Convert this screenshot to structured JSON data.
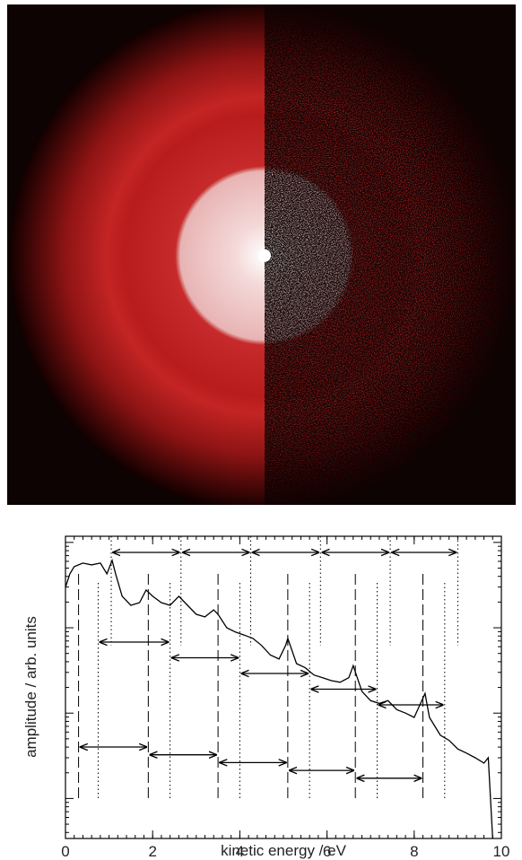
{
  "chart_data": {
    "type": "line",
    "x_label": "kinetic energy / eV",
    "y_label": "amplitude / arb. units",
    "x": [
      0,
      0.1,
      0.2,
      0.4,
      0.6,
      0.8,
      0.95,
      1.07,
      1.15,
      1.3,
      1.5,
      1.7,
      1.85,
      2.0,
      2.2,
      2.4,
      2.6,
      2.8,
      3.0,
      3.2,
      3.4,
      3.5,
      3.7,
      3.9,
      4.1,
      4.3,
      4.5,
      4.7,
      4.9,
      5.05,
      5.1,
      5.3,
      5.5,
      5.7,
      5.9,
      6.1,
      6.3,
      6.5,
      6.6,
      6.8,
      7.0,
      7.2,
      7.4,
      7.6,
      7.8,
      8.0,
      8.25,
      8.35,
      8.6,
      8.8,
      9.0,
      9.2,
      9.4,
      9.6,
      9.7,
      9.8
    ],
    "values": [
      29.8,
      42.8,
      52,
      57.3,
      54.6,
      57.3,
      42.8,
      61.5,
      42.8,
      23.4,
      18.3,
      19.7,
      27.7,
      23.4,
      19.7,
      18.3,
      23.4,
      18.3,
      14.4,
      13.4,
      16.2,
      14.4,
      10,
      8.9,
      8.2,
      7.5,
      6.2,
      4.8,
      4.3,
      6.2,
      7.5,
      3.8,
      3.4,
      2.8,
      2.6,
      2.4,
      2.3,
      2.6,
      3.6,
      1.8,
      1.4,
      1.3,
      1.4,
      1.1,
      1.0,
      0.89,
      1.7,
      0.89,
      0.55,
      0.48,
      0.38,
      0.34,
      0.3,
      0.26,
      0.3,
      0.034
    ],
    "color": "#000000",
    "xlim": [
      0,
      10
    ],
    "xticks": [
      0,
      2,
      4,
      6,
      8,
      10
    ],
    "ylim": [
      0.034,
      118
    ],
    "yscale": "log",
    "reference_lines": [
      {
        "style": "dotted",
        "x": [
          1.05,
          2.65,
          4.25,
          5.85,
          7.45,
          9.0
        ]
      },
      {
        "style": "dotted",
        "x": [
          0.75,
          2.4,
          4.0,
          5.6,
          7.15,
          8.7
        ]
      },
      {
        "style": "dashed",
        "x": [
          0.3,
          1.9,
          3.5,
          5.1,
          6.65,
          8.2
        ]
      }
    ]
  }
}
